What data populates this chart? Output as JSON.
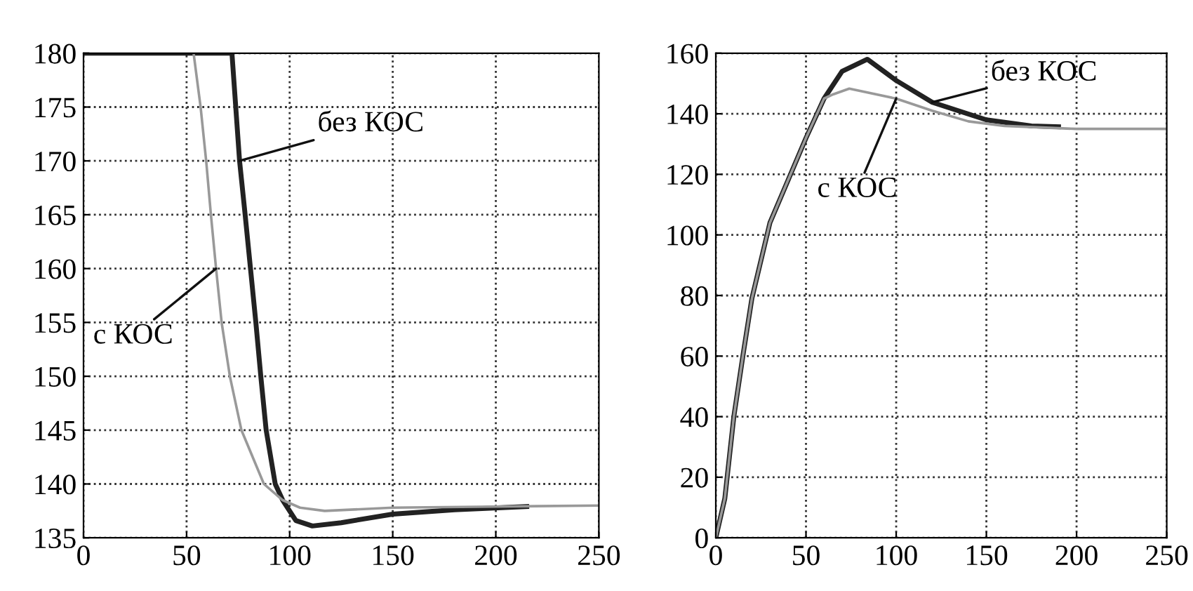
{
  "chart_data": [
    {
      "type": "line",
      "xlim": [
        0,
        250
      ],
      "ylim": [
        135,
        180
      ],
      "xticks": [
        0,
        50,
        100,
        150,
        200,
        250
      ],
      "yticks": [
        135,
        140,
        145,
        150,
        155,
        160,
        165,
        170,
        175,
        180
      ],
      "grid": true,
      "line_style": "solid",
      "marker": "none",
      "series": [
        {
          "name": "без КОС",
          "color": "#222222",
          "x": [
            0,
            72,
            75.7,
            78.4,
            81,
            83.6,
            86,
            88.6,
            93,
            96.6,
            103,
            111,
            125,
            150,
            180,
            215
          ],
          "values": [
            180,
            180,
            170,
            165,
            160,
            155,
            150,
            145,
            140,
            138.5,
            136.6,
            136.1,
            136.4,
            137.2,
            137.6,
            137.9
          ]
        },
        {
          "name": "с КОС",
          "color": "#999999",
          "x": [
            53.4,
            56.8,
            59.5,
            61.8,
            64.3,
            67,
            71,
            76.6,
            87.5,
            96.6,
            105,
            117,
            150,
            200,
            250
          ],
          "values": [
            180,
            175,
            170,
            165,
            160,
            155,
            150,
            145,
            140,
            138.5,
            137.8,
            137.5,
            137.8,
            137.9,
            138
          ]
        }
      ],
      "legend": false
    },
    {
      "type": "line",
      "xlim": [
        0,
        250
      ],
      "ylim": [
        0,
        160
      ],
      "xticks": [
        0,
        50,
        100,
        150,
        200,
        250
      ],
      "yticks": [
        0,
        20,
        40,
        60,
        80,
        100,
        120,
        140,
        160
      ],
      "grid": true,
      "line_style": "solid",
      "marker": "none",
      "series": [
        {
          "name": "без КОС",
          "color": "#222222",
          "x": [
            0,
            5,
            10,
            15,
            20,
            30,
            40,
            50,
            60,
            70,
            84,
            100,
            120,
            150,
            175,
            190
          ],
          "values": [
            0,
            13,
            40,
            60,
            79,
            104,
            118,
            132,
            145,
            154,
            158,
            151,
            143.8,
            138,
            136,
            135.7
          ]
        },
        {
          "name": "с КОС",
          "color": "#999999",
          "x": [
            0,
            5,
            10,
            15,
            20,
            30,
            40,
            50,
            60,
            65,
            74,
            100,
            120,
            140,
            160,
            200,
            250
          ],
          "values": [
            0,
            13,
            40,
            60,
            79,
            104,
            118,
            132,
            145,
            146.4,
            148.3,
            145,
            141,
            137.5,
            136,
            135,
            135
          ]
        }
      ],
      "legend": false
    }
  ]
}
